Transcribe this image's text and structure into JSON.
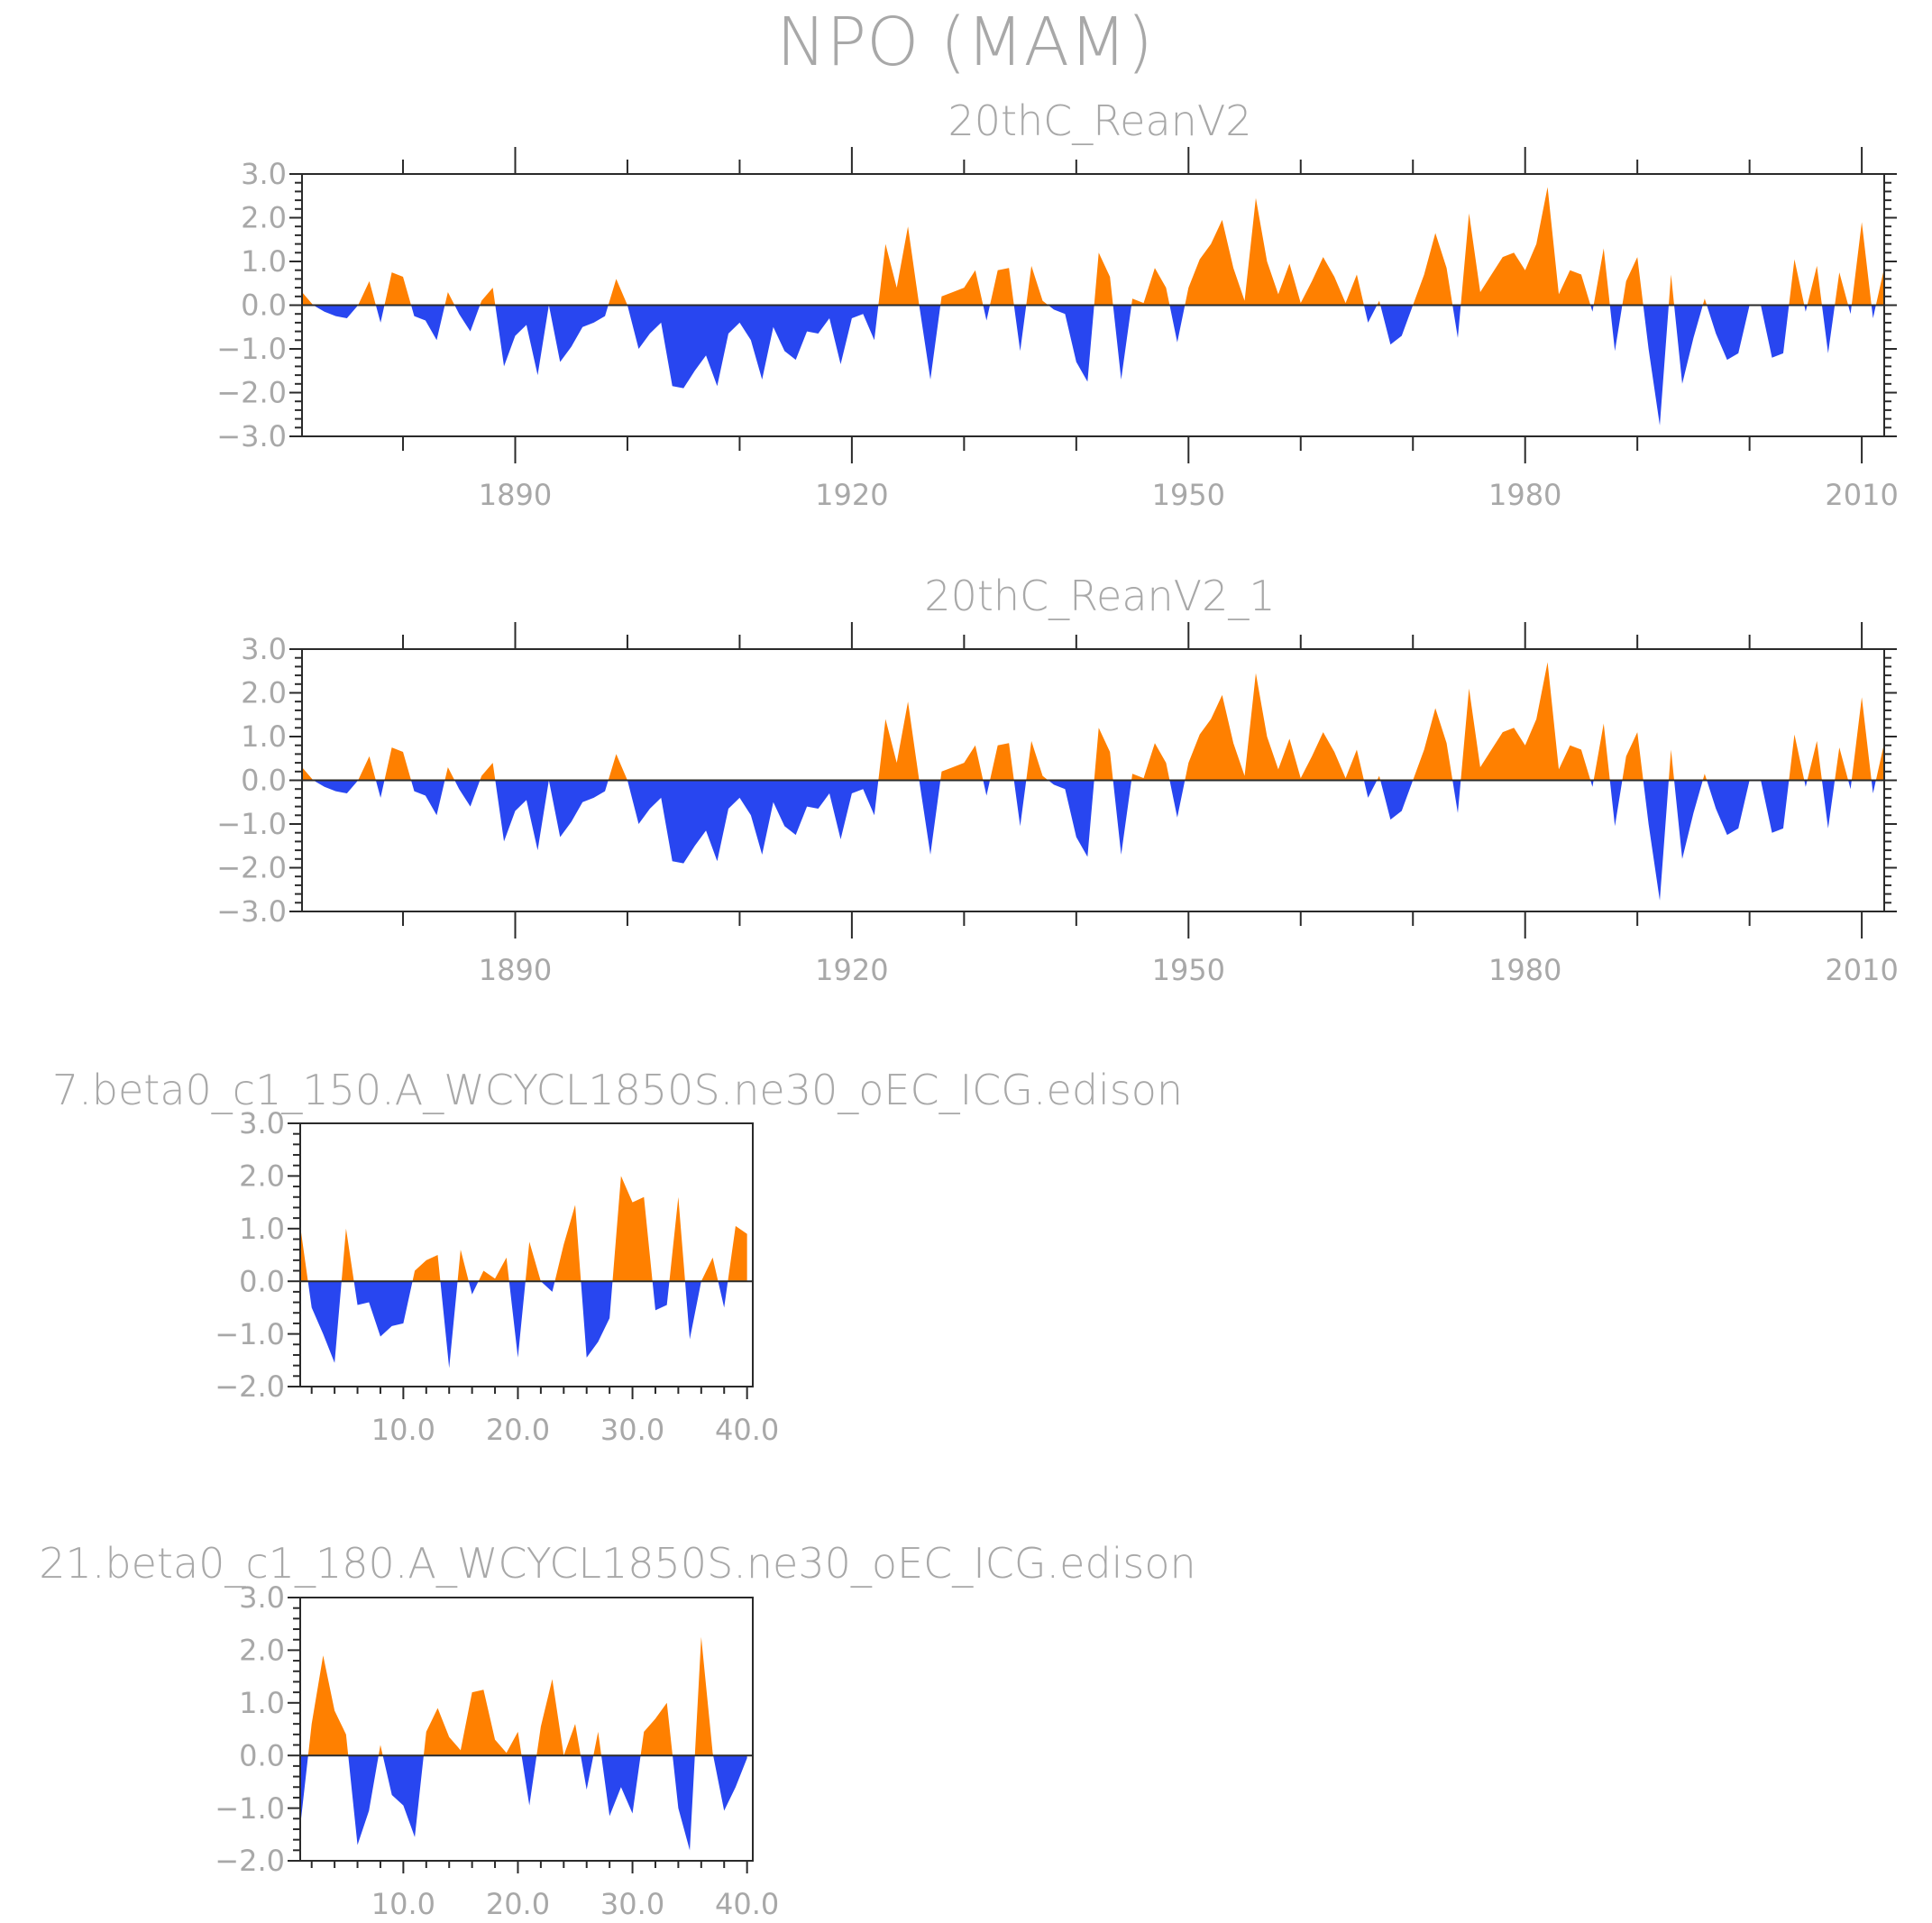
{
  "figure": {
    "title": "NPO (MAM)"
  },
  "colors": {
    "positive": "#ff8000",
    "negative": "#2846f0",
    "axis": "#2a2a2a",
    "text": "#a8a8a8"
  },
  "chart_data": [
    {
      "type": "area",
      "title": "20thC_ReanV2",
      "xlabel": "",
      "ylabel": "",
      "xlim": [
        1871,
        2012
      ],
      "ylim": [
        -3.0,
        3.0
      ],
      "x_start": 1871,
      "x_step": 1,
      "xticks": [
        1890,
        1920,
        1950,
        1980,
        2010
      ],
      "xtick_labels": [
        "1890",
        "1920",
        "1950",
        "1980",
        "2010"
      ],
      "yticks": [
        -3.0,
        -2.0,
        -1.0,
        0.0,
        1.0,
        2.0,
        3.0
      ],
      "ytick_labels": [
        "−3.0",
        "−2.0",
        "−1.0",
        "0.0",
        "1.0",
        "2.0",
        "3.0"
      ],
      "values": [
        0.3,
        0.0,
        -0.15,
        -0.25,
        -0.3,
        0.0,
        0.55,
        -0.4,
        0.75,
        0.65,
        -0.25,
        -0.35,
        -0.8,
        0.3,
        -0.2,
        -0.6,
        0.1,
        0.4,
        -1.4,
        -0.7,
        -0.45,
        -1.6,
        0.0,
        -1.3,
        -0.95,
        -0.5,
        -0.4,
        -0.25,
        0.6,
        0.0,
        -1.0,
        -0.65,
        -0.4,
        -1.85,
        -1.9,
        -1.5,
        -1.15,
        -1.85,
        -0.65,
        -0.4,
        -0.8,
        -1.7,
        -0.5,
        -1.05,
        -1.25,
        -0.6,
        -0.65,
        -0.3,
        -1.35,
        -0.3,
        -0.2,
        -0.8,
        1.4,
        0.4,
        1.8,
        0.0,
        -1.7,
        0.2,
        0.3,
        0.4,
        0.8,
        -0.35,
        0.8,
        0.85,
        -1.05,
        0.9,
        0.1,
        -0.1,
        -0.2,
        -1.3,
        -1.75,
        1.2,
        0.65,
        -1.7,
        0.15,
        0.05,
        0.85,
        0.4,
        -0.85,
        0.4,
        1.05,
        1.4,
        1.95,
        0.85,
        0.1,
        2.45,
        1.0,
        0.25,
        0.95,
        0.05,
        0.55,
        1.1,
        0.65,
        0.05,
        0.7,
        -0.4,
        0.1,
        -0.9,
        -0.7,
        0.0,
        0.7,
        1.65,
        0.85,
        -0.75,
        2.1,
        0.3,
        0.7,
        1.1,
        1.2,
        0.8,
        1.4,
        2.7,
        0.25,
        0.8,
        0.7,
        -0.15,
        1.3,
        -1.05,
        0.55,
        1.1,
        -1.0,
        -2.75,
        0.7,
        -1.8,
        -0.75,
        0.15,
        -0.65,
        -1.25,
        -1.1,
        0.0,
        0.0,
        -1.2,
        -1.1,
        1.05,
        -0.15,
        0.9,
        -1.1,
        0.75,
        -0.2,
        1.9,
        -0.3,
        0.85
      ]
    },
    {
      "type": "area",
      "title": "20thC_ReanV2_1",
      "xlabel": "",
      "ylabel": "",
      "xlim": [
        1871,
        2012
      ],
      "ylim": [
        -3.0,
        3.0
      ],
      "x_start": 1871,
      "x_step": 1,
      "xticks": [
        1890,
        1920,
        1950,
        1980,
        2010
      ],
      "xtick_labels": [
        "1890",
        "1920",
        "1950",
        "1980",
        "2010"
      ],
      "yticks": [
        -3.0,
        -2.0,
        -1.0,
        0.0,
        1.0,
        2.0,
        3.0
      ],
      "ytick_labels": [
        "−3.0",
        "−2.0",
        "−1.0",
        "0.0",
        "1.0",
        "2.0",
        "3.0"
      ],
      "values": [
        0.3,
        0.0,
        -0.15,
        -0.25,
        -0.3,
        0.0,
        0.55,
        -0.4,
        0.75,
        0.65,
        -0.25,
        -0.35,
        -0.8,
        0.3,
        -0.2,
        -0.6,
        0.1,
        0.4,
        -1.4,
        -0.7,
        -0.45,
        -1.6,
        0.0,
        -1.3,
        -0.95,
        -0.5,
        -0.4,
        -0.25,
        0.6,
        0.0,
        -1.0,
        -0.65,
        -0.4,
        -1.85,
        -1.9,
        -1.5,
        -1.15,
        -1.85,
        -0.65,
        -0.4,
        -0.8,
        -1.7,
        -0.5,
        -1.05,
        -1.25,
        -0.6,
        -0.65,
        -0.3,
        -1.35,
        -0.3,
        -0.2,
        -0.8,
        1.4,
        0.4,
        1.8,
        0.0,
        -1.7,
        0.2,
        0.3,
        0.4,
        0.8,
        -0.35,
        0.8,
        0.85,
        -1.05,
        0.9,
        0.1,
        -0.1,
        -0.2,
        -1.3,
        -1.75,
        1.2,
        0.65,
        -1.7,
        0.15,
        0.05,
        0.85,
        0.4,
        -0.85,
        0.4,
        1.05,
        1.4,
        1.95,
        0.85,
        0.1,
        2.45,
        1.0,
        0.25,
        0.95,
        0.05,
        0.55,
        1.1,
        0.65,
        0.05,
        0.7,
        -0.4,
        0.1,
        -0.9,
        -0.7,
        0.0,
        0.7,
        1.65,
        0.85,
        -0.75,
        2.1,
        0.3,
        0.7,
        1.1,
        1.2,
        0.8,
        1.4,
        2.7,
        0.25,
        0.8,
        0.7,
        -0.15,
        1.3,
        -1.05,
        0.55,
        1.1,
        -1.0,
        -2.75,
        0.7,
        -1.8,
        -0.75,
        0.15,
        -0.65,
        -1.25,
        -1.1,
        0.0,
        0.0,
        -1.2,
        -1.1,
        1.05,
        -0.15,
        0.9,
        -1.1,
        0.75,
        -0.2,
        1.9,
        -0.3,
        0.85
      ]
    },
    {
      "type": "area",
      "title": "7.beta0_c1_150.A_WCYCL1850S.ne30_oEC_ICG.edison",
      "xlabel": "",
      "ylabel": "",
      "xlim": [
        1,
        40.5
      ],
      "ylim": [
        -2.0,
        3.0
      ],
      "x_start": 1,
      "x_step": 1,
      "xticks": [
        10,
        20,
        30,
        40
      ],
      "xtick_labels": [
        "10.0",
        "20.0",
        "30.0",
        "40.0"
      ],
      "yticks": [
        -2.0,
        -1.0,
        0.0,
        1.0,
        2.0,
        3.0
      ],
      "ytick_labels": [
        "−2.0",
        "−1.0",
        "0.0",
        "1.0",
        "2.0",
        "3.0"
      ],
      "values": [
        1.05,
        -0.5,
        -1.0,
        -1.55,
        1.0,
        -0.45,
        -0.4,
        -1.05,
        -0.85,
        -0.8,
        0.2,
        0.4,
        0.5,
        -1.65,
        0.6,
        -0.25,
        0.2,
        0.05,
        0.45,
        -1.45,
        0.75,
        0.0,
        -0.2,
        0.7,
        1.45,
        -1.45,
        -1.15,
        -0.7,
        2.0,
        1.5,
        1.6,
        -0.55,
        -0.45,
        1.6,
        -1.1,
        0.0,
        0.45,
        -0.5,
        1.05,
        0.9
      ]
    },
    {
      "type": "area",
      "title": "21.beta0_c1_180.A_WCYCL1850S.ne30_oEC_ICG.edison",
      "xlabel": "",
      "ylabel": "",
      "xlim": [
        1,
        40.5
      ],
      "ylim": [
        -2.0,
        3.0
      ],
      "x_start": 1,
      "x_step": 1,
      "xticks": [
        10,
        20,
        30,
        40
      ],
      "xtick_labels": [
        "10.0",
        "20.0",
        "30.0",
        "40.0"
      ],
      "yticks": [
        -2.0,
        -1.0,
        0.0,
        1.0,
        2.0,
        3.0
      ],
      "ytick_labels": [
        "−2.0",
        "−1.0",
        "0.0",
        "1.0",
        "2.0",
        "3.0"
      ],
      "values": [
        -1.35,
        0.6,
        1.9,
        0.85,
        0.4,
        -1.7,
        -1.05,
        0.2,
        -0.75,
        -0.95,
        -1.55,
        0.45,
        0.9,
        0.35,
        0.1,
        1.2,
        1.25,
        0.3,
        0.05,
        0.45,
        -0.95,
        0.55,
        1.45,
        0.0,
        0.6,
        -0.65,
        0.45,
        -1.15,
        -0.6,
        -1.1,
        0.45,
        0.7,
        1.0,
        -1.0,
        -1.8,
        2.25,
        0.05,
        -1.05,
        -0.6,
        -0.05
      ]
    }
  ]
}
